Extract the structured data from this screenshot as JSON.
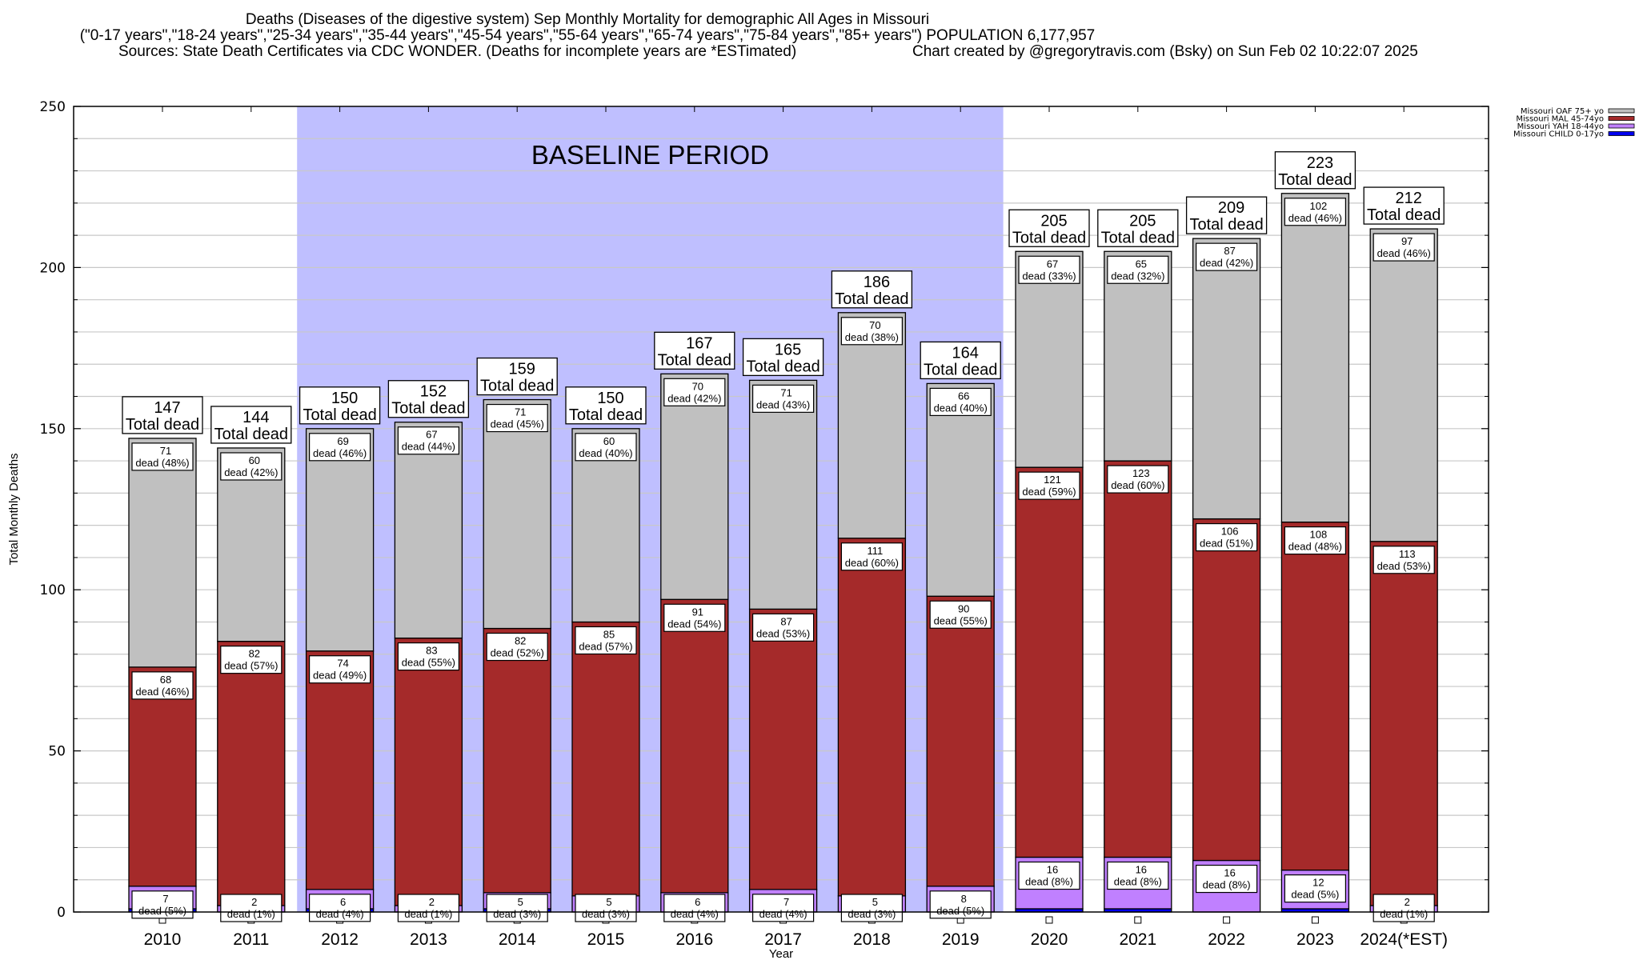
{
  "header": {
    "title_line1": "Deaths (Diseases of the digestive system) Sep Monthly Mortality for demographic All Ages in Missouri",
    "title_line2": "(\"0-17 years\",\"18-24 years\",\"25-34 years\",\"35-44 years\",\"45-54 years\",\"55-64 years\",\"65-74 years\",\"75-84 years\",\"85+ years\") POPULATION 6,177,957",
    "sources": "Sources: State Death Certificates via CDC WONDER. (Deaths for incomplete years are *ESTimated)",
    "credit": "Chart created by @gregorytravis.com (Bsky) on Sun Feb 02 10:22:07 2025"
  },
  "chart_data": {
    "type": "bar",
    "stacked": true,
    "title": "Deaths (Diseases of the digestive system) Sep Monthly Mortality for demographic All Ages in Missouri",
    "xlabel": "Year",
    "ylabel": "Total Monthly Deaths",
    "ylim": [
      0,
      250
    ],
    "yticks": [
      0,
      50,
      100,
      150,
      200,
      250
    ],
    "grid": true,
    "legend_position": "top-right",
    "categories": [
      "2010",
      "2011",
      "2012",
      "2013",
      "2014",
      "2015",
      "2016",
      "2017",
      "2018",
      "2019",
      "2020",
      "2021",
      "2022",
      "2023",
      "2024(*EST)"
    ],
    "baseline_period": {
      "label": "BASELINE PERIOD",
      "from": "2012",
      "to": "2019",
      "color": "#bfbfff"
    },
    "total_label_suffix": "Total dead",
    "segment_label_word": "dead",
    "totals": [
      147,
      144,
      150,
      152,
      159,
      150,
      167,
      165,
      186,
      164,
      205,
      205,
      209,
      223,
      212
    ],
    "series": [
      {
        "name": "Missouri CHILD 0-17yo",
        "color": "#0000ee",
        "values": [
          1,
          0,
          1,
          0,
          1,
          0,
          0,
          0,
          0,
          0,
          1,
          1,
          0,
          1,
          0
        ],
        "labels": false
      },
      {
        "name": "Missouri YAH 18-44yo",
        "color": "#c080ff",
        "values": [
          7,
          2,
          6,
          2,
          5,
          5,
          6,
          7,
          5,
          8,
          16,
          16,
          16,
          12,
          2
        ],
        "pct": [
          "5%",
          "1%",
          "4%",
          "1%",
          "3%",
          "3%",
          "4%",
          "4%",
          "3%",
          "5%",
          "8%",
          "8%",
          "8%",
          "5%",
          "1%"
        ]
      },
      {
        "name": "Missouri MAL 45-74yo",
        "color": "#a52a2a",
        "values": [
          68,
          82,
          74,
          83,
          82,
          85,
          91,
          87,
          111,
          90,
          121,
          123,
          106,
          108,
          113
        ],
        "pct": [
          "46%",
          "57%",
          "49%",
          "55%",
          "52%",
          "57%",
          "54%",
          "53%",
          "60%",
          "55%",
          "59%",
          "60%",
          "51%",
          "48%",
          "53%"
        ]
      },
      {
        "name": "Missouri OAF 75+ yo",
        "color": "#c0c0c0",
        "values": [
          71,
          60,
          69,
          67,
          71,
          60,
          70,
          71,
          70,
          66,
          67,
          65,
          87,
          102,
          97
        ],
        "pct": [
          "48%",
          "42%",
          "46%",
          "44%",
          "45%",
          "40%",
          "42%",
          "43%",
          "38%",
          "40%",
          "33%",
          "32%",
          "42%",
          "46%",
          "46%"
        ]
      }
    ]
  }
}
